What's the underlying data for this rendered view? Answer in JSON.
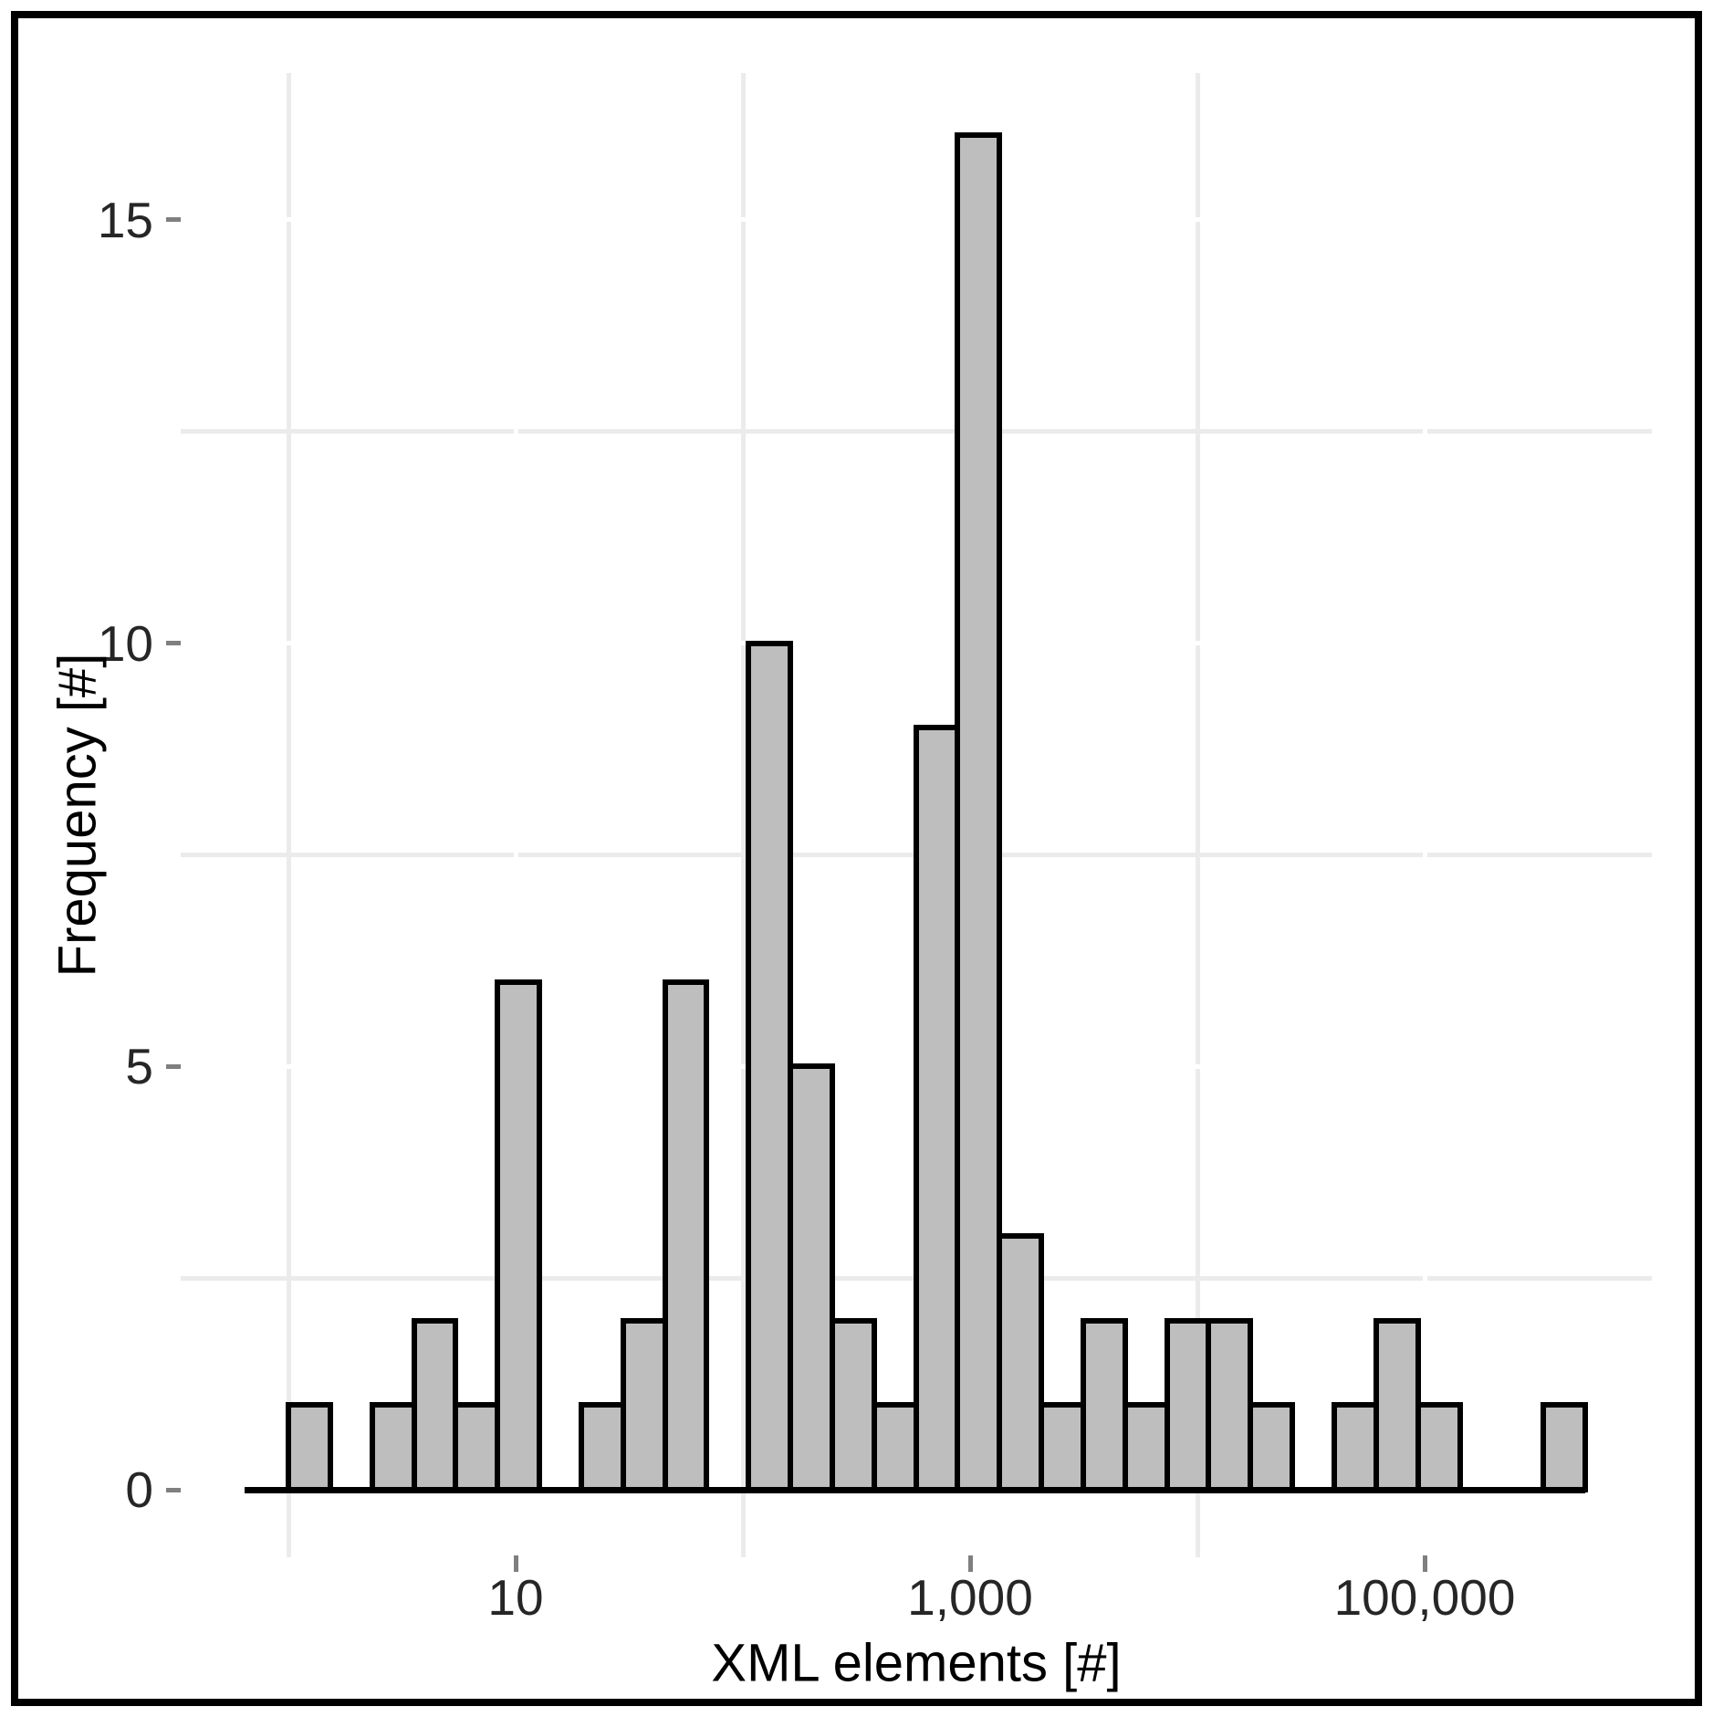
{
  "figure": {
    "background_color": "#ffffff",
    "border_color": "#000000"
  },
  "chart_data": {
    "type": "bar",
    "subtype": "histogram",
    "title": "",
    "xlabel": "XML elements [#]",
    "ylabel": "Frequency [#]",
    "x_scale": "log10",
    "grid": "minor-grey-major-white",
    "legend": "none",
    "x_ticks": [
      {
        "label": "10",
        "value": 10
      },
      {
        "label": "1,000",
        "value": 1000
      },
      {
        "label": "100,000",
        "value": 100000
      }
    ],
    "x_minor_grid_values": [
      1,
      100,
      10000
    ],
    "y_ticks": [
      {
        "label": "0",
        "value": 0
      },
      {
        "label": "5",
        "value": 5
      },
      {
        "label": "10",
        "value": 10
      },
      {
        "label": "15",
        "value": 15
      }
    ],
    "y_minor_grid_values": [
      2.5,
      7.5,
      12.5
    ],
    "ylim": [
      0,
      16.8
    ],
    "xlim_log10": [
      -0.2,
      5.75
    ],
    "bin_start_log10": 0.0,
    "bin_width_log10": 0.1841,
    "bin_counts": [
      1,
      0,
      1,
      2,
      1,
      6,
      0,
      1,
      2,
      6,
      0,
      10,
      5,
      2,
      1,
      9,
      16,
      3,
      1,
      2,
      1,
      2,
      2,
      1,
      0,
      1,
      2,
      1,
      0,
      0,
      1
    ],
    "total_observations": 80,
    "max_count": 16,
    "bar_fill": "#bebebe",
    "bar_stroke": "#000000",
    "axis_line_color": "#000000",
    "grid_minor_color": "#ebebeb",
    "grid_major_color": "#ffffff",
    "tick_mark_color": "#7f7f7f",
    "tick_label_color": "#262626",
    "axis_title_color": "#000000"
  }
}
